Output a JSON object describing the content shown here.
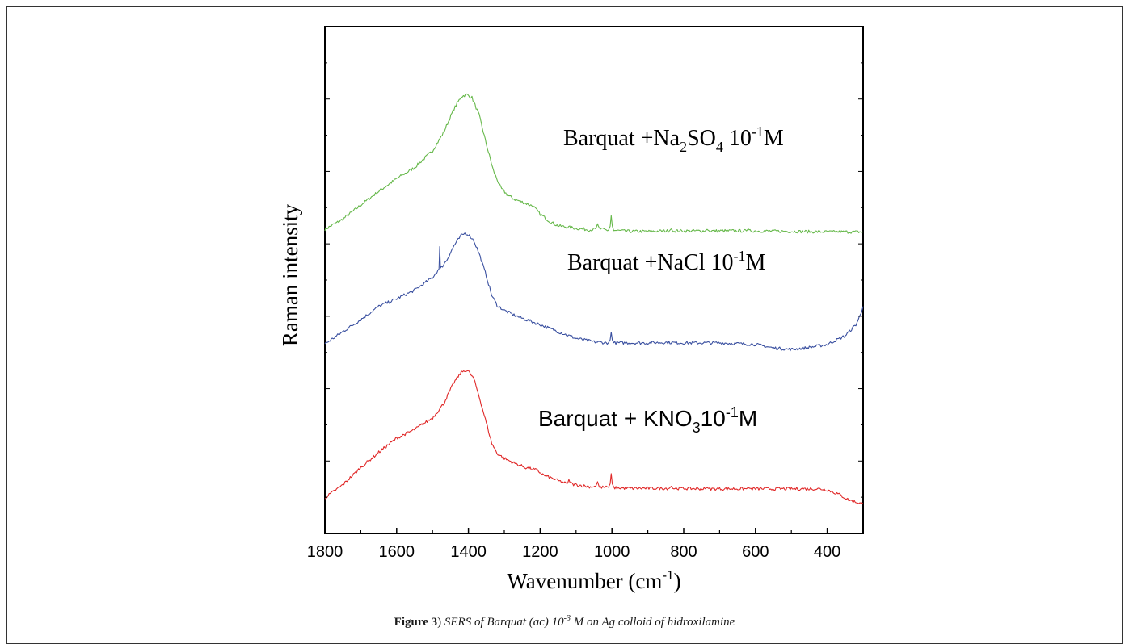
{
  "caption": {
    "label": "Figure 3",
    "label_tail": ") ",
    "text_before": "SERS of Barquat (ac) 10",
    "exponent": "-3",
    "text_after": " M on Ag colloid of hidroxilamine"
  },
  "chart_data": {
    "type": "line",
    "xlabel_base": "Wavenumber (cm",
    "xlabel_sup": "-1",
    "xlabel_tail": ")",
    "ylabel": "Raman intensity",
    "xlim": [
      1800,
      300
    ],
    "x_reversed": true,
    "ylim": [
      0,
      1
    ],
    "y_ticks_labeled": false,
    "x_ticks": [
      "1800",
      "1600",
      "1400",
      "1200",
      "1000",
      "800",
      "600",
      "400"
    ],
    "x_tick_values": [
      1800,
      1600,
      1400,
      1200,
      1000,
      800,
      600,
      400
    ],
    "series": [
      {
        "label_parts": [
          "Barquat +Na",
          "2",
          "SO",
          "4",
          " 10",
          "-1",
          "M"
        ],
        "color": "#66b84a",
        "points": [
          [
            1800,
            0.6
          ],
          [
            1750,
            0.62
          ],
          [
            1700,
            0.648
          ],
          [
            1650,
            0.675
          ],
          [
            1600,
            0.7
          ],
          [
            1550,
            0.722
          ],
          [
            1500,
            0.755
          ],
          [
            1470,
            0.79
          ],
          [
            1440,
            0.838
          ],
          [
            1420,
            0.862
          ],
          [
            1405,
            0.866
          ],
          [
            1390,
            0.86
          ],
          [
            1370,
            0.825
          ],
          [
            1350,
            0.768
          ],
          [
            1330,
            0.715
          ],
          [
            1310,
            0.682
          ],
          [
            1290,
            0.667
          ],
          [
            1270,
            0.659
          ],
          [
            1250,
            0.654
          ],
          [
            1220,
            0.646
          ],
          [
            1200,
            0.63
          ],
          [
            1170,
            0.614
          ],
          [
            1150,
            0.607
          ],
          [
            1100,
            0.602
          ],
          [
            1060,
            0.599
          ],
          [
            1045,
            0.601
          ],
          [
            1040,
            0.611
          ],
          [
            1035,
            0.601
          ],
          [
            1010,
            0.598
          ],
          [
            1005,
            0.606
          ],
          [
            1002,
            0.627
          ],
          [
            999,
            0.607
          ],
          [
            995,
            0.598
          ],
          [
            950,
            0.596
          ],
          [
            900,
            0.596
          ],
          [
            840,
            0.597
          ],
          [
            835,
            0.601
          ],
          [
            830,
            0.597
          ],
          [
            740,
            0.597
          ],
          [
            735,
            0.6
          ],
          [
            730,
            0.597
          ],
          [
            625,
            0.597
          ],
          [
            620,
            0.601
          ],
          [
            615,
            0.597
          ],
          [
            500,
            0.596
          ],
          [
            400,
            0.595
          ],
          [
            300,
            0.595
          ]
        ]
      },
      {
        "label_parts": [
          "Barquat +NaCl 10",
          "-1",
          "M"
        ],
        "color": "#3a50a0",
        "points": [
          [
            1800,
            0.374
          ],
          [
            1750,
            0.398
          ],
          [
            1700,
            0.422
          ],
          [
            1650,
            0.448
          ],
          [
            1600,
            0.463
          ],
          [
            1550,
            0.48
          ],
          [
            1500,
            0.505
          ],
          [
            1482,
            0.522
          ],
          [
            1480,
            0.566
          ],
          [
            1478,
            0.522
          ],
          [
            1460,
            0.54
          ],
          [
            1440,
            0.568
          ],
          [
            1420,
            0.588
          ],
          [
            1410,
            0.592
          ],
          [
            1400,
            0.59
          ],
          [
            1385,
            0.578
          ],
          [
            1370,
            0.552
          ],
          [
            1350,
            0.508
          ],
          [
            1335,
            0.47
          ],
          [
            1320,
            0.45
          ],
          [
            1300,
            0.44
          ],
          [
            1270,
            0.43
          ],
          [
            1240,
            0.422
          ],
          [
            1200,
            0.412
          ],
          [
            1150,
            0.398
          ],
          [
            1100,
            0.385
          ],
          [
            1050,
            0.378
          ],
          [
            1010,
            0.376
          ],
          [
            1005,
            0.382
          ],
          [
            1002,
            0.397
          ],
          [
            999,
            0.382
          ],
          [
            995,
            0.376
          ],
          [
            950,
            0.376
          ],
          [
            900,
            0.376
          ],
          [
            850,
            0.377
          ],
          [
            800,
            0.376
          ],
          [
            700,
            0.376
          ],
          [
            600,
            0.373
          ],
          [
            550,
            0.366
          ],
          [
            500,
            0.363
          ],
          [
            450,
            0.367
          ],
          [
            400,
            0.373
          ],
          [
            350,
            0.39
          ],
          [
            320,
            0.412
          ],
          [
            305,
            0.435
          ],
          [
            300,
            0.448
          ]
        ]
      },
      {
        "label_parts": [
          "Barquat + KNO",
          "3",
          "10",
          "-1",
          "M"
        ],
        "color": "#e02828",
        "points": [
          [
            1800,
            0.07
          ],
          [
            1750,
            0.096
          ],
          [
            1700,
            0.13
          ],
          [
            1650,
            0.16
          ],
          [
            1600,
            0.188
          ],
          [
            1550,
            0.205
          ],
          [
            1500,
            0.228
          ],
          [
            1470,
            0.255
          ],
          [
            1440,
            0.298
          ],
          [
            1420,
            0.318
          ],
          [
            1410,
            0.322
          ],
          [
            1400,
            0.32
          ],
          [
            1385,
            0.305
          ],
          [
            1370,
            0.27
          ],
          [
            1350,
            0.218
          ],
          [
            1335,
            0.178
          ],
          [
            1320,
            0.158
          ],
          [
            1300,
            0.148
          ],
          [
            1270,
            0.138
          ],
          [
            1240,
            0.13
          ],
          [
            1210,
            0.125
          ],
          [
            1190,
            0.115
          ],
          [
            1150,
            0.104
          ],
          [
            1125,
            0.098
          ],
          [
            1120,
            0.104
          ],
          [
            1110,
            0.097
          ],
          [
            1060,
            0.092
          ],
          [
            1045,
            0.093
          ],
          [
            1040,
            0.102
          ],
          [
            1035,
            0.091
          ],
          [
            1010,
            0.091
          ],
          [
            1005,
            0.098
          ],
          [
            1002,
            0.118
          ],
          [
            999,
            0.098
          ],
          [
            995,
            0.09
          ],
          [
            950,
            0.089
          ],
          [
            900,
            0.089
          ],
          [
            840,
            0.089
          ],
          [
            835,
            0.093
          ],
          [
            830,
            0.089
          ],
          [
            740,
            0.088
          ],
          [
            735,
            0.091
          ],
          [
            730,
            0.088
          ],
          [
            625,
            0.088
          ],
          [
            620,
            0.091
          ],
          [
            615,
            0.088
          ],
          [
            500,
            0.088
          ],
          [
            420,
            0.088
          ],
          [
            400,
            0.086
          ],
          [
            370,
            0.078
          ],
          [
            340,
            0.066
          ],
          [
            300,
            0.058
          ]
        ]
      }
    ]
  }
}
